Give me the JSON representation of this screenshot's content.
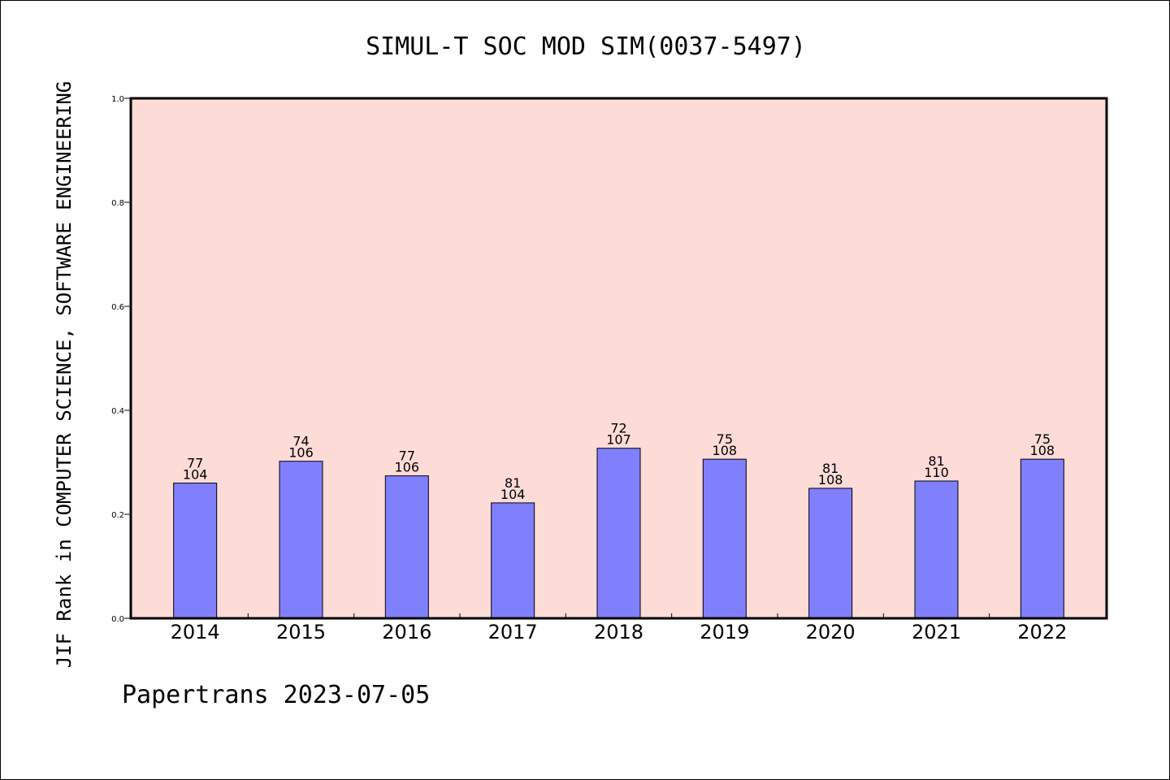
{
  "chart_data": {
    "type": "bar",
    "title": "SIMUL-T SOC MOD SIM(0037-5497)",
    "xlabel": "",
    "ylabel": "JIF Rank in COMPUTER SCIENCE, SOFTWARE ENGINEERING",
    "footer": "Papertrans 2023-07-05",
    "categories": [
      "2014",
      "2015",
      "2016",
      "2017",
      "2018",
      "2019",
      "2020",
      "2021",
      "2022"
    ],
    "values": [
      0.26,
      0.302,
      0.274,
      0.222,
      0.327,
      0.306,
      0.25,
      0.264,
      0.306
    ],
    "label_top": [
      "77",
      "74",
      "77",
      "81",
      "72",
      "75",
      "81",
      "81",
      "75"
    ],
    "label_bottom": [
      "104",
      "106",
      "106",
      "104",
      "107",
      "108",
      "108",
      "110",
      "108"
    ],
    "ylim": [
      0,
      1.0
    ],
    "yticks": [
      "0.0",
      "0.2",
      "0.4",
      "0.6",
      "0.8",
      "1.0"
    ],
    "grid": false,
    "colors": {
      "plot_background": "#fddbd7",
      "bar_fill": "#8080ff",
      "bar_edge": "#000000"
    }
  }
}
